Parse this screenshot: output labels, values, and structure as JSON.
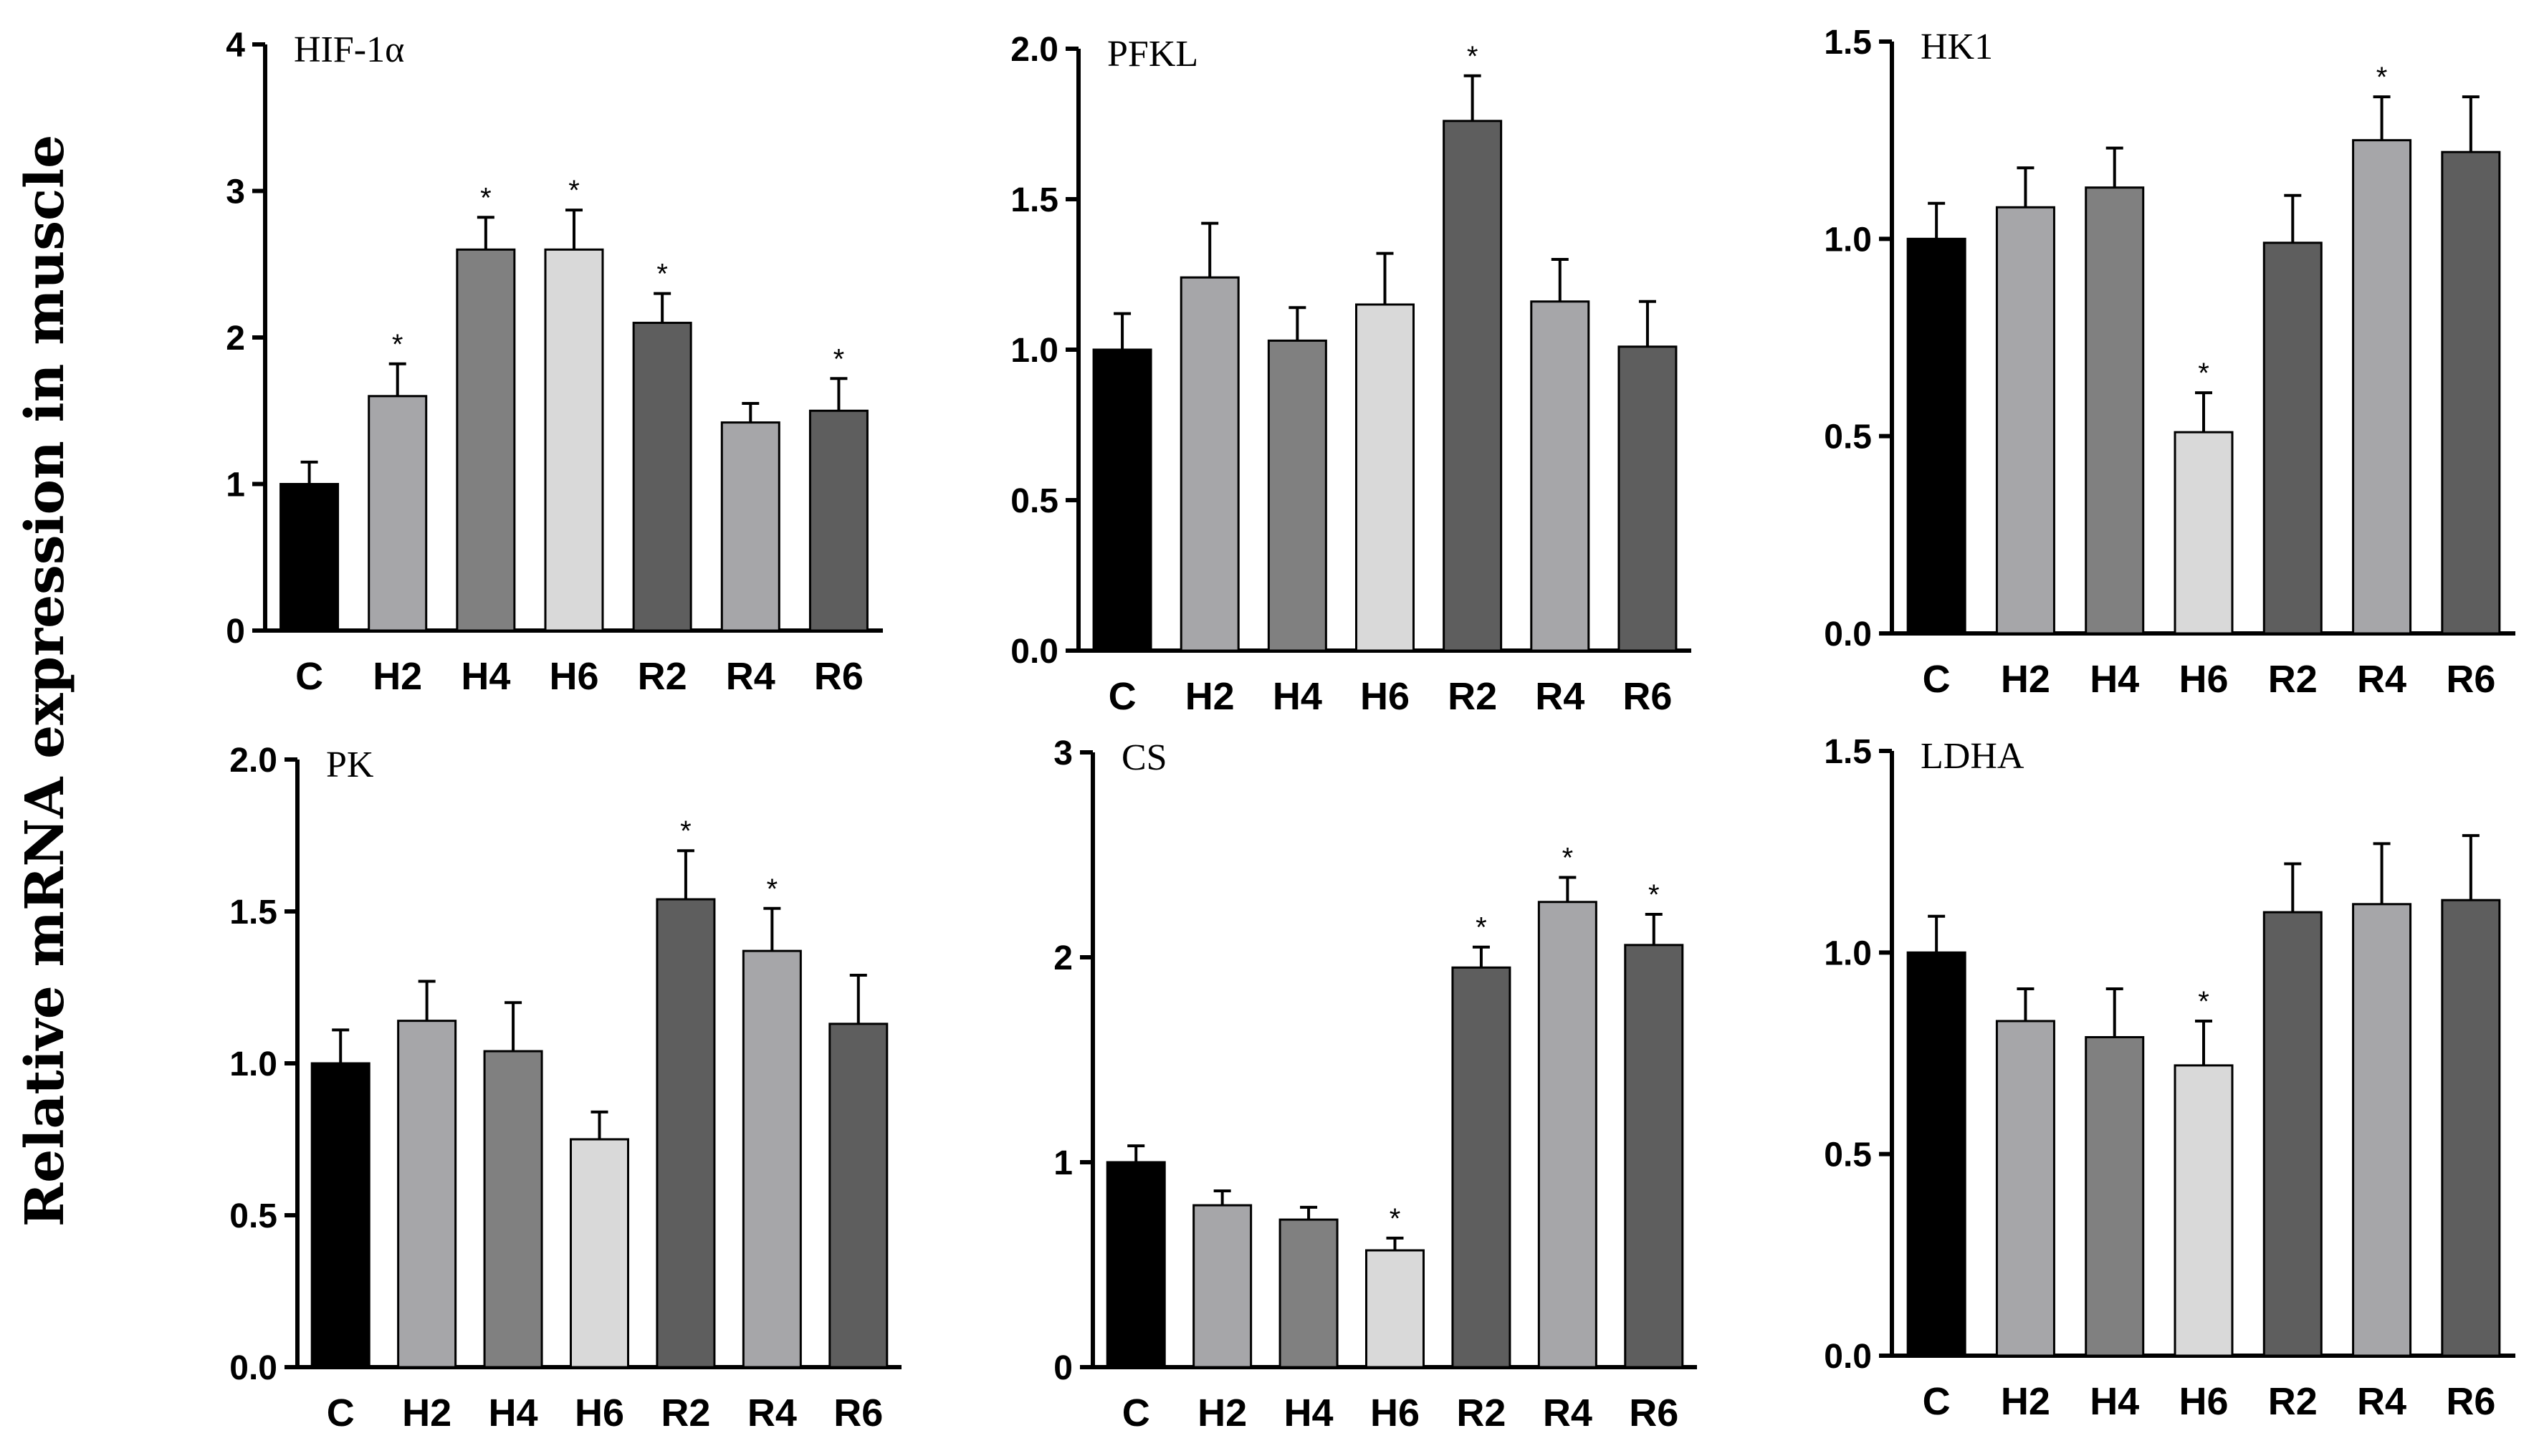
{
  "figure": {
    "ylabel": "Relative mRNA expression in muscle",
    "colors": {
      "C": "#000000",
      "H2": "#a6a6a9",
      "H4": "#808080",
      "H6": "#d9d9d9",
      "R2": "#5e5e5e",
      "R4": "#a6a6a9",
      "R6": "#5e5e5e"
    }
  },
  "chart_data": [
    {
      "type": "bar",
      "title": "HIF-1α",
      "categories": [
        "C",
        "H2",
        "H4",
        "H6",
        "R2",
        "R4",
        "R6"
      ],
      "values": [
        1.0,
        1.6,
        2.6,
        2.6,
        2.1,
        1.42,
        1.5
      ],
      "errors": [
        0.15,
        0.22,
        0.22,
        0.27,
        0.2,
        0.13,
        0.22
      ],
      "significant": [
        false,
        true,
        true,
        true,
        true,
        false,
        true
      ],
      "ylim": [
        0,
        4
      ],
      "yticks": [
        0,
        1,
        2,
        3,
        4
      ],
      "ytick_labels": [
        "0",
        "1",
        "2",
        "3",
        "4"
      ],
      "xlabel": "",
      "ylabel": ""
    },
    {
      "type": "bar",
      "title": "PFKL",
      "categories": [
        "C",
        "H2",
        "H4",
        "H6",
        "R2",
        "R4",
        "R6"
      ],
      "values": [
        1.0,
        1.24,
        1.03,
        1.15,
        1.76,
        1.16,
        1.01
      ],
      "errors": [
        0.12,
        0.18,
        0.11,
        0.17,
        0.15,
        0.14,
        0.15
      ],
      "significant": [
        false,
        false,
        false,
        false,
        true,
        false,
        false
      ],
      "ylim": [
        0,
        2.0
      ],
      "yticks": [
        0,
        0.5,
        1.0,
        1.5,
        2.0
      ],
      "ytick_labels": [
        "0.0",
        "0.5",
        "1.0",
        "1.5",
        "2.0"
      ],
      "xlabel": "",
      "ylabel": ""
    },
    {
      "type": "bar",
      "title": "HK1",
      "categories": [
        "C",
        "H2",
        "H4",
        "H6",
        "R2",
        "R4",
        "R6"
      ],
      "values": [
        1.0,
        1.08,
        1.13,
        0.51,
        0.99,
        1.25,
        1.22
      ],
      "errors": [
        0.09,
        0.1,
        0.1,
        0.1,
        0.12,
        0.11,
        0.14
      ],
      "significant": [
        false,
        false,
        false,
        true,
        false,
        true,
        false
      ],
      "ylim": [
        0,
        1.5
      ],
      "yticks": [
        0,
        0.5,
        1.0,
        1.5
      ],
      "ytick_labels": [
        "0.0",
        "0.5",
        "1.0",
        "1.5"
      ],
      "xlabel": "",
      "ylabel": ""
    },
    {
      "type": "bar",
      "title": "PK",
      "categories": [
        "C",
        "H2",
        "H4",
        "H6",
        "R2",
        "R4",
        "R6"
      ],
      "values": [
        1.0,
        1.14,
        1.04,
        0.75,
        1.54,
        1.37,
        1.13
      ],
      "errors": [
        0.11,
        0.13,
        0.16,
        0.09,
        0.16,
        0.14,
        0.16
      ],
      "significant": [
        false,
        false,
        false,
        false,
        true,
        true,
        false
      ],
      "ylim": [
        0,
        2.0
      ],
      "yticks": [
        0,
        0.5,
        1.0,
        1.5,
        2.0
      ],
      "ytick_labels": [
        "0.0",
        "0.5",
        "1.0",
        "1.5",
        "2.0"
      ],
      "xlabel": "",
      "ylabel": ""
    },
    {
      "type": "bar",
      "title": "CS",
      "categories": [
        "C",
        "H2",
        "H4",
        "H6",
        "R2",
        "R4",
        "R6"
      ],
      "values": [
        1.0,
        0.79,
        0.72,
        0.57,
        1.95,
        2.27,
        2.06
      ],
      "errors": [
        0.08,
        0.07,
        0.06,
        0.06,
        0.1,
        0.12,
        0.15
      ],
      "significant": [
        false,
        false,
        false,
        true,
        true,
        true,
        true
      ],
      "ylim": [
        0,
        3
      ],
      "yticks": [
        0,
        1,
        2,
        3
      ],
      "ytick_labels": [
        "0",
        "1",
        "2",
        "3"
      ],
      "xlabel": "",
      "ylabel": ""
    },
    {
      "type": "bar",
      "title": "LDHA",
      "categories": [
        "C",
        "H2",
        "H4",
        "H6",
        "R2",
        "R4",
        "R6"
      ],
      "values": [
        1.0,
        0.83,
        0.79,
        0.72,
        1.1,
        1.12,
        1.13
      ],
      "errors": [
        0.09,
        0.08,
        0.12,
        0.11,
        0.12,
        0.15,
        0.16
      ],
      "significant": [
        false,
        false,
        false,
        true,
        false,
        false,
        false
      ],
      "ylim": [
        0,
        1.5
      ],
      "yticks": [
        0,
        0.5,
        1.0,
        1.5
      ],
      "ytick_labels": [
        "0.0",
        "0.5",
        "1.0",
        "1.5"
      ],
      "xlabel": "",
      "ylabel": ""
    }
  ]
}
